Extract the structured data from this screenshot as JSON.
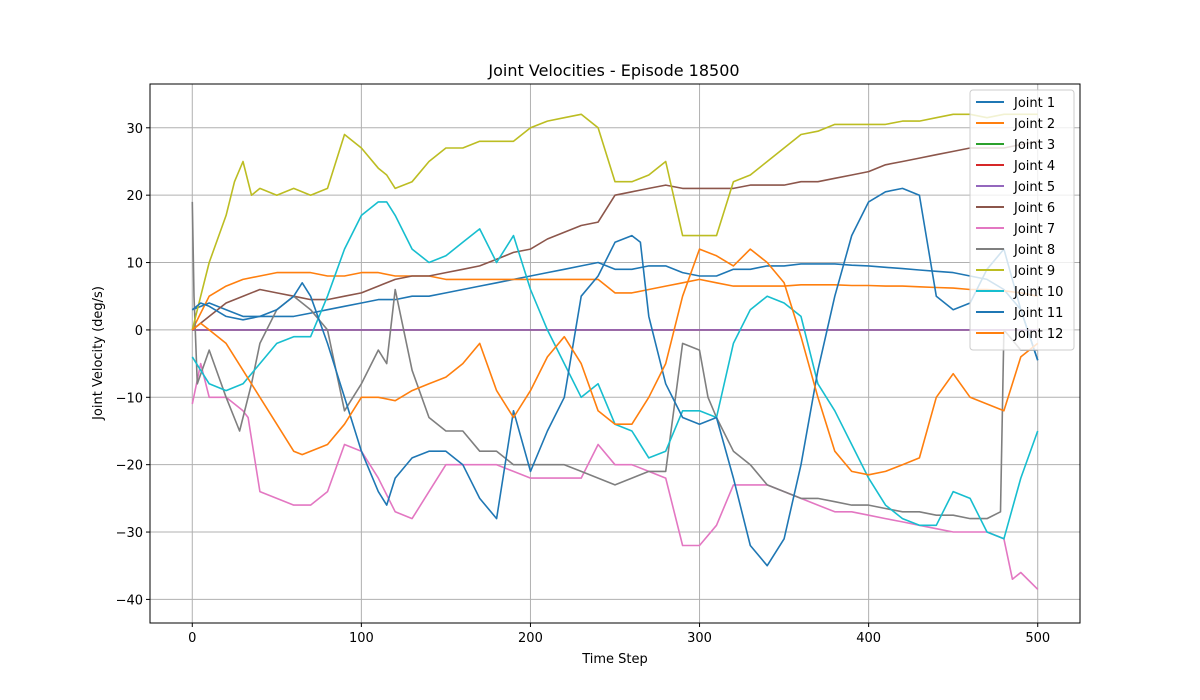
{
  "chart_data": {
    "type": "line",
    "title": "Joint Velocities - Episode 18500",
    "xlabel": "Time Step",
    "ylabel": "Joint Velocity (deg/s)",
    "xlim": [
      -25,
      525
    ],
    "ylim": [
      -43.5,
      36.5
    ],
    "xticks": [
      0,
      100,
      200,
      300,
      400,
      500
    ],
    "yticks": [
      -40,
      -30,
      -20,
      -10,
      0,
      10,
      20,
      30
    ],
    "grid": true,
    "legend_position": "top-right",
    "series": [
      {
        "name": "Joint 1",
        "color": "#1f77b4",
        "x": [
          0,
          10,
          20,
          30,
          40,
          50,
          60,
          70,
          80,
          90,
          100,
          110,
          120,
          130,
          140,
          150,
          160,
          170,
          180,
          190,
          200,
          210,
          220,
          230,
          240,
          250,
          260,
          270,
          280,
          290,
          300,
          310,
          320,
          330,
          340,
          350,
          360,
          370,
          380,
          390,
          400,
          410,
          420,
          430,
          440,
          450,
          460,
          470,
          480,
          490,
          500
        ],
        "y": [
          3,
          4,
          3,
          2,
          2,
          2,
          2,
          2.5,
          3,
          3.5,
          4,
          4.5,
          4.5,
          5,
          5,
          5.5,
          6,
          6.5,
          7,
          7.5,
          8,
          8.5,
          9,
          9.5,
          10,
          9,
          9,
          9.5,
          9.5,
          8.5,
          8,
          8,
          9,
          9,
          9.5,
          9.5,
          9.8,
          9.8,
          9.8,
          9.6,
          9.5,
          9.3,
          9.1,
          8.9,
          8.7,
          8.5,
          8,
          7.5,
          6,
          3,
          -4.5
        ]
      },
      {
        "name": "Joint 2",
        "color": "#ff7f0e",
        "x": [
          0,
          10,
          20,
          30,
          40,
          50,
          60,
          70,
          80,
          90,
          100,
          110,
          120,
          130,
          140,
          150,
          160,
          170,
          180,
          190,
          200,
          210,
          220,
          230,
          240,
          250,
          260,
          270,
          280,
          290,
          300,
          310,
          320,
          330,
          340,
          350,
          360,
          370,
          380,
          390,
          400,
          410,
          420,
          430,
          440,
          450,
          460,
          470,
          480,
          490,
          500
        ],
        "y": [
          0,
          5,
          6.5,
          7.5,
          8,
          8.5,
          8.5,
          8.5,
          8,
          8,
          8.5,
          8.5,
          8,
          8,
          8,
          7.5,
          7.5,
          7.5,
          7.5,
          7.5,
          7.5,
          7.5,
          7.5,
          7.5,
          7.5,
          5.5,
          5.5,
          6,
          6.5,
          7,
          7.5,
          7,
          6.5,
          6.5,
          6.5,
          6.5,
          6.7,
          6.7,
          6.7,
          6.6,
          6.6,
          6.5,
          6.5,
          6.4,
          6.3,
          6.2,
          6,
          6,
          5.8,
          5.5,
          5
        ]
      },
      {
        "name": "Joint 3",
        "color": "#2ca02c",
        "x": [
          0,
          500
        ],
        "y": [
          0,
          0
        ]
      },
      {
        "name": "Joint 4",
        "color": "#d62728",
        "x": [
          0,
          500
        ],
        "y": [
          0,
          0
        ]
      },
      {
        "name": "Joint 5",
        "color": "#9467bd",
        "x": [
          0,
          500
        ],
        "y": [
          0,
          0
        ]
      },
      {
        "name": "Joint 6",
        "color": "#8c564b",
        "x": [
          0,
          10,
          20,
          30,
          40,
          50,
          60,
          70,
          80,
          90,
          100,
          110,
          120,
          130,
          140,
          150,
          160,
          170,
          180,
          190,
          200,
          210,
          220,
          230,
          240,
          250,
          260,
          270,
          280,
          290,
          300,
          310,
          320,
          330,
          340,
          350,
          360,
          370,
          380,
          390,
          400,
          410,
          420,
          430,
          440,
          450,
          460,
          470,
          480,
          490,
          500
        ],
        "y": [
          0,
          2,
          4,
          5,
          6,
          5.5,
          5,
          4.5,
          4.5,
          5,
          5.5,
          6.5,
          7.5,
          8,
          8,
          8.5,
          9,
          9.5,
          10.5,
          11.5,
          12,
          13.5,
          14.5,
          15.5,
          16,
          20,
          20.5,
          21,
          21.5,
          21,
          21,
          21,
          21,
          21.5,
          21.5,
          21.5,
          22,
          22,
          22.5,
          23,
          23.5,
          24.5,
          25,
          25.5,
          26,
          26.5,
          27,
          27,
          27,
          27.5,
          28
        ]
      },
      {
        "name": "Joint 7",
        "color": "#e377c2",
        "x": [
          0,
          5,
          10,
          20,
          30,
          33,
          40,
          50,
          60,
          70,
          80,
          90,
          100,
          110,
          120,
          130,
          140,
          150,
          160,
          170,
          180,
          190,
          200,
          210,
          220,
          230,
          240,
          250,
          260,
          270,
          280,
          290,
          300,
          310,
          320,
          330,
          340,
          350,
          360,
          370,
          380,
          390,
          400,
          410,
          420,
          430,
          440,
          450,
          460,
          470,
          480,
          485,
          490,
          500
        ],
        "y": [
          -11,
          -5,
          -10,
          -10,
          -12,
          -13,
          -24,
          -25,
          -26,
          -26,
          -24,
          -17,
          -18,
          -22,
          -27,
          -28,
          -24,
          -20,
          -20,
          -20,
          -20,
          -21,
          -22,
          -22,
          -22,
          -22,
          -17,
          -20,
          -20,
          -21,
          -22,
          -32,
          -32,
          -29,
          -23,
          -23,
          -23,
          -24,
          -25,
          -26,
          -27,
          -27,
          -27.5,
          -28,
          -28.5,
          -29,
          -29.5,
          -30,
          -30,
          -30,
          -31,
          -37,
          -36,
          -38.5
        ]
      },
      {
        "name": "Joint 8",
        "color": "#7f7f7f",
        "x": [
          0,
          1,
          3,
          10,
          20,
          28,
          30,
          35,
          40,
          50,
          60,
          70,
          80,
          90,
          100,
          110,
          115,
          120,
          130,
          140,
          150,
          160,
          170,
          180,
          190,
          200,
          210,
          220,
          230,
          240,
          250,
          260,
          270,
          280,
          290,
          300,
          305,
          310,
          320,
          330,
          340,
          350,
          360,
          370,
          380,
          390,
          400,
          410,
          420,
          430,
          440,
          450,
          460,
          470,
          478,
          480,
          490,
          500
        ],
        "y": [
          19,
          5,
          -8,
          -3,
          -10,
          -15,
          -13,
          -8,
          -2,
          3,
          5,
          3,
          0,
          -12,
          -8,
          -3,
          -5,
          6,
          -6,
          -13,
          -15,
          -15,
          -18,
          -18,
          -20,
          -20,
          -20,
          -20,
          -21,
          -22,
          -23,
          -22,
          -21,
          -21,
          -2,
          -3,
          -10,
          -13,
          -18,
          -20,
          -23,
          -24,
          -25,
          -25,
          -25.5,
          -26,
          -26,
          -26.5,
          -27,
          -27,
          -27.5,
          -27.5,
          -28,
          -28,
          -27,
          0,
          -3,
          -3
        ]
      },
      {
        "name": "Joint 9",
        "color": "#bcbd22",
        "x": [
          0,
          5,
          10,
          20,
          25,
          30,
          35,
          40,
          50,
          60,
          70,
          80,
          90,
          100,
          110,
          115,
          120,
          130,
          140,
          150,
          160,
          170,
          180,
          190,
          200,
          210,
          220,
          230,
          240,
          250,
          260,
          270,
          280,
          290,
          300,
          310,
          320,
          330,
          340,
          350,
          360,
          370,
          380,
          390,
          400,
          410,
          420,
          430,
          440,
          450,
          460,
          470,
          480,
          490,
          500
        ],
        "y": [
          0,
          5,
          10,
          17,
          22,
          25,
          20,
          21,
          20,
          21,
          20,
          21,
          29,
          27,
          24,
          23,
          21,
          22,
          25,
          27,
          27,
          28,
          28,
          28,
          30,
          31,
          31.5,
          32,
          30,
          22,
          22,
          23,
          25,
          14,
          14,
          14,
          22,
          23,
          25,
          27,
          29,
          29.5,
          30.5,
          30.5,
          30.5,
          30.5,
          31,
          31,
          31.5,
          32,
          32,
          31.5,
          32,
          32,
          32
        ]
      },
      {
        "name": "Joint 10",
        "color": "#17becf",
        "x": [
          0,
          5,
          10,
          20,
          30,
          40,
          50,
          60,
          70,
          80,
          90,
          100,
          110,
          115,
          120,
          130,
          140,
          150,
          160,
          170,
          180,
          190,
          200,
          210,
          220,
          230,
          240,
          250,
          260,
          270,
          280,
          290,
          300,
          310,
          320,
          330,
          340,
          350,
          360,
          370,
          380,
          390,
          400,
          410,
          420,
          430,
          440,
          450,
          460,
          470,
          480,
          490,
          500
        ],
        "y": [
          -4,
          -6,
          -8,
          -9,
          -8,
          -5,
          -2,
          -1,
          -1,
          5,
          12,
          17,
          19,
          19,
          17,
          12,
          10,
          11,
          13,
          15,
          10,
          14,
          6,
          0,
          -5,
          -10,
          -8,
          -14,
          -15,
          -19,
          -18,
          -12,
          -12,
          -13,
          -2,
          3,
          5,
          4,
          2,
          -8,
          -12,
          -17,
          -22,
          -26,
          -28,
          -29,
          -29,
          -24,
          -25,
          -30,
          -31,
          -22,
          -15
        ]
      },
      {
        "name": "Joint 11",
        "color": "#1f77b4",
        "x": [
          0,
          5,
          10,
          20,
          30,
          40,
          50,
          60,
          65,
          70,
          80,
          90,
          100,
          110,
          115,
          120,
          130,
          140,
          150,
          160,
          170,
          180,
          190,
          200,
          210,
          220,
          230,
          240,
          250,
          260,
          265,
          270,
          280,
          290,
          300,
          310,
          320,
          330,
          340,
          350,
          360,
          370,
          380,
          390,
          400,
          410,
          420,
          430,
          440,
          450,
          460,
          470,
          480,
          490,
          500
        ],
        "y": [
          3,
          4,
          3.5,
          2,
          1.5,
          2,
          3,
          5,
          7,
          5,
          -2,
          -10,
          -18,
          -24,
          -26,
          -22,
          -19,
          -18,
          -18,
          -20,
          -25,
          -28,
          -12,
          -21,
          -15,
          -10,
          5,
          8,
          13,
          14,
          13,
          2,
          -8,
          -13,
          -14,
          -13,
          -22,
          -32,
          -35,
          -31,
          -20,
          -6,
          5,
          14,
          19,
          20.5,
          21,
          20,
          5,
          3,
          4,
          9,
          12,
          3,
          -4.5
        ]
      },
      {
        "name": "Joint 12",
        "color": "#ff7f0e",
        "x": [
          0,
          5,
          10,
          20,
          30,
          40,
          50,
          60,
          65,
          70,
          80,
          90,
          100,
          110,
          120,
          130,
          140,
          150,
          160,
          170,
          180,
          190,
          200,
          210,
          220,
          230,
          240,
          250,
          260,
          270,
          280,
          290,
          300,
          310,
          320,
          330,
          340,
          350,
          360,
          370,
          380,
          390,
          400,
          410,
          420,
          430,
          440,
          450,
          460,
          470,
          480,
          490,
          500
        ],
        "y": [
          0,
          1,
          0,
          -2,
          -6,
          -10,
          -14,
          -18,
          -18.5,
          -18,
          -17,
          -14,
          -10,
          -10,
          -10.5,
          -9,
          -8,
          -7,
          -5,
          -2,
          -9,
          -13,
          -9,
          -4,
          -1,
          -5,
          -12,
          -14,
          -14,
          -10,
          -5,
          5,
          12,
          11,
          9.5,
          12,
          10,
          7,
          -1,
          -10,
          -18,
          -21,
          -21.5,
          -21,
          -20,
          -19,
          -10,
          -6.5,
          -10,
          -11,
          -12,
          -4,
          -2
        ]
      }
    ]
  }
}
